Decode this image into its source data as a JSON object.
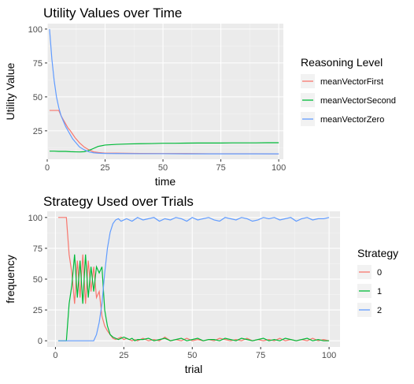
{
  "chart_data": [
    {
      "type": "line",
      "title": "Utility Values over Time",
      "xlabel": "time",
      "ylabel": "Utility Value",
      "xlim": [
        0,
        102
      ],
      "ylim": [
        4,
        104
      ],
      "x_ticks": [
        0,
        25,
        50,
        75,
        100
      ],
      "y_ticks": [
        25,
        50,
        75,
        100
      ],
      "legend_title": "Reasoning Level",
      "legend_position": "right",
      "grid": true,
      "series": [
        {
          "name": "meanVectorFirst",
          "color": "#f8766d",
          "x": [
            1,
            2,
            3,
            4,
            5,
            6,
            7,
            8,
            9,
            10,
            12,
            14,
            16,
            18,
            20,
            22,
            25,
            30,
            40,
            50,
            60,
            70,
            80,
            90,
            100
          ],
          "values": [
            40,
            40,
            40,
            40,
            40,
            36,
            33,
            30,
            27,
            25,
            20,
            16,
            13,
            11,
            9.5,
            9,
            8.5,
            8.5,
            8.3,
            8.2,
            8.2,
            8.1,
            8.1,
            8.1,
            8
          ]
        },
        {
          "name": "meanVectorSecond",
          "color": "#00ba38",
          "x": [
            1,
            3,
            5,
            8,
            10,
            12,
            14,
            16,
            18,
            20,
            22,
            25,
            30,
            35,
            40,
            45,
            50,
            55,
            60,
            65,
            70,
            75,
            80,
            85,
            90,
            95,
            100
          ],
          "values": [
            10,
            10,
            9.8,
            9.8,
            9.6,
            9.5,
            9.4,
            9.6,
            10.5,
            12,
            13.5,
            14.5,
            15,
            15.3,
            15.5,
            15.6,
            15.8,
            15.8,
            15.9,
            16,
            16,
            16,
            16.1,
            16.1,
            16.1,
            16.2,
            16.2
          ]
        },
        {
          "name": "meanVectorZero",
          "color": "#619cff",
          "x": [
            1,
            2,
            3,
            4,
            5,
            6,
            7,
            8,
            9,
            10,
            11,
            12,
            13,
            14,
            16,
            18,
            20,
            22,
            25,
            30,
            40,
            50,
            60,
            70,
            80,
            90,
            100
          ],
          "values": [
            100,
            78,
            62,
            50,
            42,
            36,
            32,
            28,
            25,
            22,
            19,
            17,
            15,
            13,
            11,
            9.5,
            8.8,
            8.5,
            8.3,
            8.2,
            8.1,
            8.1,
            8,
            8,
            8,
            8,
            8
          ]
        }
      ]
    },
    {
      "type": "line",
      "title": "Strategy Used over Trials",
      "xlabel": "trial",
      "ylabel": "frequency",
      "xlim": [
        -3,
        104
      ],
      "ylim": [
        -5,
        105
      ],
      "x_ticks": [
        0,
        25,
        50,
        75,
        100
      ],
      "y_ticks": [
        0,
        25,
        50,
        75,
        100
      ],
      "legend_title": "Strategy",
      "legend_position": "right",
      "grid": true,
      "series": [
        {
          "name": "0",
          "color": "#f8766d",
          "x": [
            1,
            2,
            3,
            4,
            5,
            6,
            7,
            8,
            9,
            10,
            11,
            12,
            13,
            14,
            15,
            16,
            17,
            18,
            19,
            20,
            21,
            22,
            23,
            24,
            25,
            26,
            27,
            28,
            29,
            30,
            32,
            34,
            36,
            38,
            40,
            42,
            44,
            46,
            48,
            50,
            52,
            54,
            56,
            58,
            60,
            62,
            64,
            66,
            68,
            70,
            72,
            74,
            76,
            78,
            80,
            82,
            84,
            86,
            88,
            90,
            92,
            94,
            96,
            98,
            100
          ],
          "values": [
            100,
            100,
            100,
            100,
            70,
            55,
            30,
            65,
            35,
            70,
            30,
            65,
            40,
            60,
            35,
            40,
            20,
            12,
            8,
            5,
            2,
            1,
            2,
            3,
            1,
            2,
            1,
            0,
            1,
            0,
            2,
            0,
            1,
            0,
            3,
            0,
            1,
            0,
            2,
            0,
            1,
            0,
            1,
            0,
            2,
            1,
            0,
            1,
            0,
            2,
            0,
            1,
            0,
            1,
            0,
            2,
            0,
            1,
            0,
            1,
            0,
            2,
            0,
            1,
            0
          ]
        },
        {
          "name": "1",
          "color": "#00ba38",
          "x": [
            1,
            2,
            3,
            4,
            5,
            6,
            7,
            8,
            9,
            10,
            11,
            12,
            13,
            14,
            15,
            16,
            17,
            18,
            19,
            20,
            21,
            22,
            23,
            24,
            25,
            26,
            27,
            28,
            29,
            30,
            32,
            34,
            36,
            38,
            40,
            42,
            44,
            46,
            48,
            50,
            52,
            54,
            56,
            58,
            60,
            62,
            64,
            66,
            68,
            70,
            72,
            74,
            76,
            78,
            80,
            82,
            84,
            86,
            88,
            90,
            92,
            94,
            96,
            98,
            100
          ],
          "values": [
            0,
            0,
            0,
            0,
            30,
            45,
            70,
            35,
            65,
            30,
            70,
            35,
            60,
            40,
            60,
            55,
            60,
            25,
            12,
            5,
            3,
            2,
            1,
            2,
            3,
            2,
            1,
            2,
            0,
            1,
            1,
            2,
            0,
            1,
            2,
            0,
            1,
            2,
            0,
            1,
            2,
            0,
            1,
            1,
            0,
            2,
            1,
            0,
            2,
            1,
            0,
            1,
            2,
            0,
            1,
            0,
            2,
            1,
            0,
            1,
            2,
            0,
            1,
            0,
            0
          ]
        },
        {
          "name": "2",
          "color": "#619cff",
          "x": [
            1,
            2,
            3,
            4,
            5,
            6,
            7,
            8,
            9,
            10,
            11,
            12,
            13,
            14,
            15,
            16,
            17,
            18,
            19,
            20,
            21,
            22,
            23,
            24,
            25,
            26,
            28,
            30,
            32,
            34,
            36,
            38,
            40,
            42,
            44,
            46,
            48,
            50,
            52,
            54,
            56,
            58,
            60,
            62,
            64,
            66,
            68,
            70,
            72,
            74,
            76,
            78,
            80,
            82,
            84,
            86,
            88,
            90,
            92,
            94,
            96,
            98,
            100
          ],
          "values": [
            0,
            0,
            0,
            0,
            0,
            0,
            0,
            0,
            0,
            0,
            0,
            0,
            0,
            0,
            5,
            15,
            30,
            55,
            75,
            88,
            95,
            98,
            99,
            97,
            98,
            99,
            97,
            100,
            98,
            99,
            100,
            97,
            99,
            98,
            100,
            99,
            97,
            100,
            98,
            99,
            100,
            98,
            97,
            100,
            99,
            98,
            100,
            99,
            97,
            98,
            100,
            99,
            100,
            98,
            99,
            100,
            97,
            99,
            100,
            98,
            99,
            99,
            100
          ]
        }
      ]
    }
  ]
}
